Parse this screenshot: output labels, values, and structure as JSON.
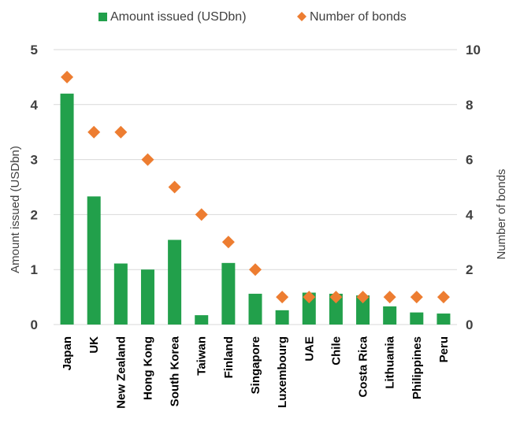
{
  "chart_data": {
    "type": "bar",
    "categories": [
      "Japan",
      "UK",
      "New Zealand",
      "Hong Kong",
      "South Korea",
      "Taiwan",
      "Finland",
      "Singapore",
      "Luxembourg",
      "UAE",
      "Chile",
      "Costa Rica",
      "Lithuania",
      "Philippines",
      "Peru"
    ],
    "series": [
      {
        "name": "Amount issued (USDbn)",
        "kind": "bar",
        "axis": "left",
        "color": "#22a04b",
        "values": [
          4.2,
          2.33,
          1.11,
          1.0,
          1.54,
          0.17,
          1.12,
          0.56,
          0.26,
          0.58,
          0.56,
          0.53,
          0.33,
          0.22,
          0.2
        ]
      },
      {
        "name": "Number of bonds",
        "kind": "scatter",
        "marker": "diamond",
        "axis": "right",
        "color": "#ed7d31",
        "values": [
          9,
          7,
          7,
          6,
          5,
          4,
          3,
          2,
          1,
          1,
          1,
          1,
          1,
          1,
          1
        ]
      }
    ],
    "ylabel": "Amount issued (USDbn)",
    "y2label": "Number of bonds",
    "ylim": [
      0,
      5
    ],
    "y2lim": [
      0,
      10
    ],
    "yticks": [
      "0",
      "1",
      "2",
      "3",
      "4",
      "5"
    ],
    "y2ticks": [
      "0",
      "2",
      "4",
      "6",
      "8",
      "10"
    ],
    "grid": true,
    "legend": "top"
  }
}
